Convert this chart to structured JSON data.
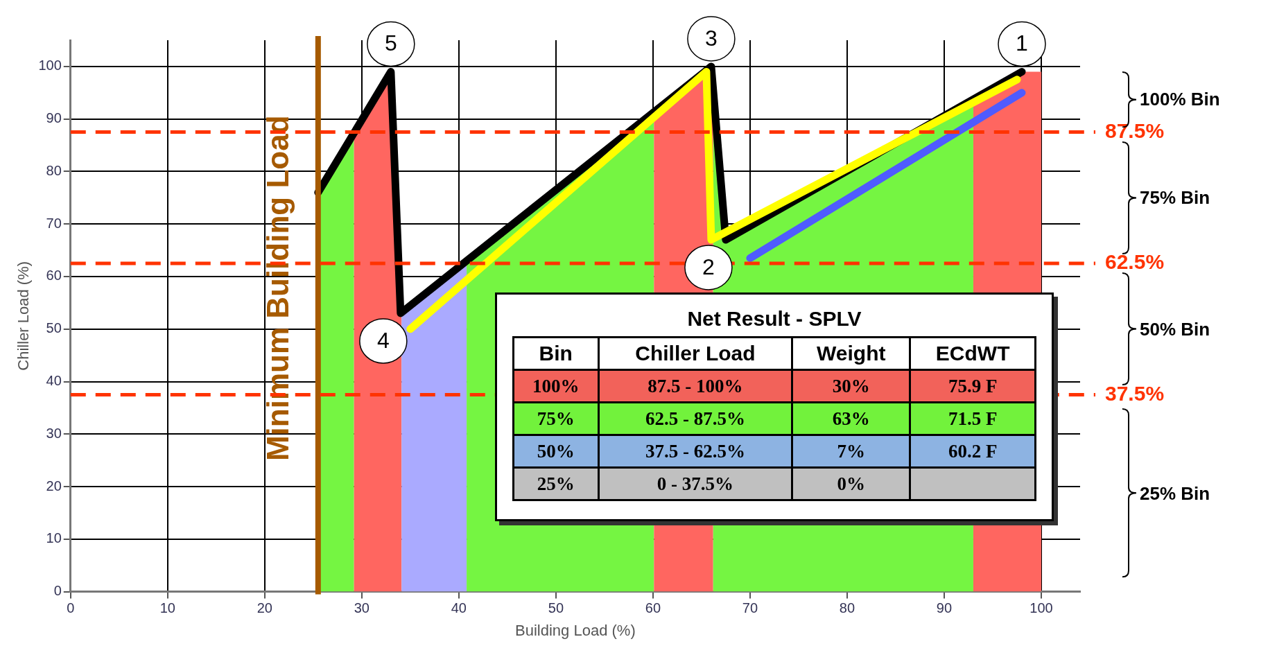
{
  "chart_data": {
    "type": "line",
    "xlabel": "Building Load (%)",
    "ylabel": "Chiller Load (%)",
    "xlim": [
      0,
      104
    ],
    "ylim": [
      0,
      105
    ],
    "xticks": [
      0,
      10,
      20,
      30,
      40,
      50,
      60,
      70,
      80,
      90,
      100
    ],
    "yticks": [
      0,
      10,
      20,
      30,
      40,
      50,
      60,
      70,
      80,
      90,
      100
    ],
    "grid": true,
    "legend": false,
    "marker": "none",
    "line_style": "solid",
    "series": [
      {
        "color": "#000000",
        "x": [
          25.5,
          33,
          34,
          66,
          67.5,
          98
        ],
        "values": [
          76,
          99,
          53,
          100,
          67,
          99
        ]
      },
      {
        "color": "#ffff00",
        "x": [
          35,
          65.5,
          66,
          97.5
        ],
        "values": [
          50,
          99,
          67,
          97.5
        ]
      },
      {
        "color": "#4f5bff",
        "x": [
          70,
          98
        ],
        "values": [
          63.5,
          95
        ]
      }
    ],
    "bands": [
      {
        "axis": "x",
        "from": 25.5,
        "to": 29.2,
        "color": "#75f542"
      },
      {
        "axis": "x",
        "from": 29.2,
        "to": 34.1,
        "color": "#ff6660"
      },
      {
        "axis": "x",
        "from": 34.1,
        "to": 40.8,
        "color": "#aaaaff"
      },
      {
        "axis": "x",
        "from": 40.8,
        "to": 60.1,
        "color": "#75f542"
      },
      {
        "axis": "x",
        "from": 60.1,
        "to": 66.2,
        "color": "#ff6660"
      },
      {
        "axis": "x",
        "from": 66.2,
        "to": 93,
        "color": "#75f542"
      },
      {
        "axis": "x",
        "from": 93,
        "to": 100,
        "color": "#ff6660"
      }
    ],
    "ref_lines": [
      {
        "axis": "x",
        "value": 25.5,
        "label": "Minimum Building Load",
        "color": "#a65a00",
        "line_style": "solid"
      },
      {
        "axis": "y",
        "value": 87.5,
        "label": "87.5%",
        "color": "#ff3300",
        "line_style": "dashed"
      },
      {
        "axis": "y",
        "value": 62.5,
        "label": "62.5%",
        "color": "#ff3300",
        "line_style": "dashed"
      },
      {
        "axis": "y",
        "value": 37.5,
        "label": "37.5%",
        "color": "#ff3300",
        "line_style": "dashed"
      }
    ],
    "annotations": [
      {
        "text": "1",
        "x": 98,
        "y": 99
      },
      {
        "text": "2",
        "x": 67.5,
        "y": 67
      },
      {
        "text": "3",
        "x": 66,
        "y": 100
      },
      {
        "text": "4",
        "x": 34,
        "y": 53
      },
      {
        "text": "5",
        "x": 33,
        "y": 99
      },
      "100% Bin",
      "75% Bin",
      "50% Bin",
      "25% Bin",
      "Net Result - SPLV",
      "Bin",
      "Chiller Load",
      "Weight",
      "ECdWT",
      "100%",
      "87.5 - 100%",
      "30%",
      "75.9 F",
      "75%",
      "62.5 - 87.5%",
      "63%",
      "71.5 F",
      "50%",
      "37.5 - 62.5%",
      "7%",
      "60.2 F",
      "25%",
      "0 - 37.5%",
      "0%"
    ]
  }
}
